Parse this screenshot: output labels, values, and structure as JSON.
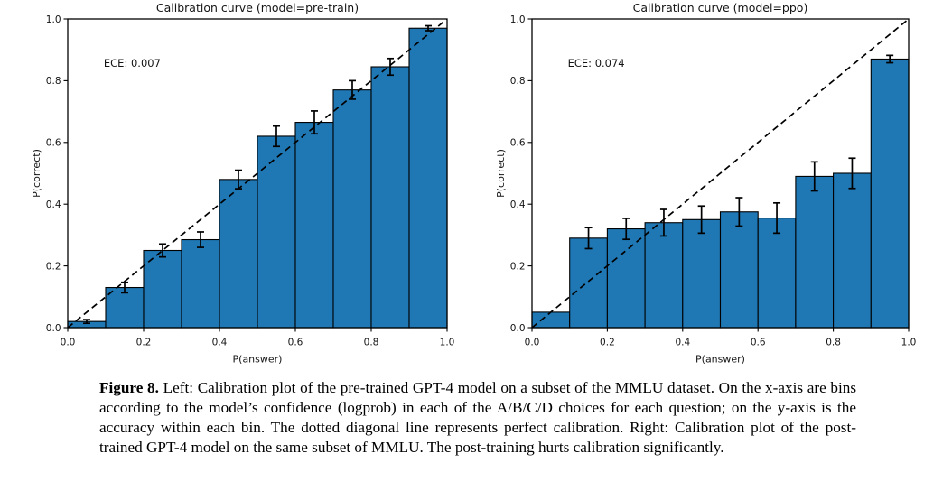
{
  "figure": {
    "caption": {
      "label": "Figure 8.",
      "text": "Left: Calibration plot of the pre-trained GPT-4 model on a subset of the MMLU dataset. On the x-axis are bins according to the model’s confidence (logprob) in each of the A/B/C/D choices for each question; on the y-axis is the accuracy within each bin. The dotted diagonal line represents perfect calibration. Right: Calibration plot of the post-trained GPT-4 model on the same subset of MMLU. The post-training hurts calibration significantly."
    }
  },
  "chart_data": [
    {
      "type": "bar",
      "title": "Calibration curve (model=pre-train)",
      "annotation": "ECE: 0.007",
      "xlabel": "P(answer)",
      "ylabel": "P(correct)",
      "xlim": [
        0,
        1
      ],
      "ylim": [
        0,
        1
      ],
      "grid": false,
      "x_ticks": [
        "0.0",
        "0.2",
        "0.4",
        "0.6",
        "0.8",
        "1.0"
      ],
      "y_ticks": [
        "0.0",
        "0.2",
        "0.4",
        "0.6",
        "0.8",
        "1.0"
      ],
      "bin_edges": [
        0.0,
        0.1,
        0.2,
        0.3,
        0.4,
        0.5,
        0.6,
        0.7,
        0.8,
        0.9,
        1.0
      ],
      "values": [
        0.02,
        0.13,
        0.25,
        0.285,
        0.48,
        0.62,
        0.665,
        0.77,
        0.845,
        0.97
      ],
      "errors": [
        0.006,
        0.017,
        0.021,
        0.025,
        0.03,
        0.033,
        0.037,
        0.03,
        0.027,
        0.008
      ],
      "diagonal": {
        "style": "dashed",
        "from": [
          0,
          0
        ],
        "to": [
          1,
          1
        ],
        "meaning": "perfect calibration"
      },
      "colors": {
        "bar": "#1f77b4",
        "edge": "#000000",
        "diagonal": "#000000"
      }
    },
    {
      "type": "bar",
      "title": "Calibration curve (model=ppo)",
      "annotation": "ECE: 0.074",
      "xlabel": "P(answer)",
      "ylabel": "P(correct)",
      "xlim": [
        0,
        1
      ],
      "ylim": [
        0,
        1
      ],
      "grid": false,
      "x_ticks": [
        "0.0",
        "0.2",
        "0.4",
        "0.6",
        "0.8",
        "1.0"
      ],
      "y_ticks": [
        "0.0",
        "0.2",
        "0.4",
        "0.6",
        "0.8",
        "1.0"
      ],
      "bin_edges": [
        0.0,
        0.1,
        0.2,
        0.3,
        0.4,
        0.5,
        0.6,
        0.7,
        0.8,
        0.9,
        1.0
      ],
      "values": [
        0.05,
        0.29,
        0.32,
        0.34,
        0.35,
        0.375,
        0.355,
        0.49,
        0.5,
        0.87
      ],
      "errors": [
        0,
        0.034,
        0.034,
        0.043,
        0.044,
        0.046,
        0.049,
        0.047,
        0.049,
        0.012
      ],
      "diagonal": {
        "style": "dashed",
        "from": [
          0,
          0
        ],
        "to": [
          1,
          1
        ],
        "meaning": "perfect calibration"
      },
      "colors": {
        "bar": "#1f77b4",
        "edge": "#000000",
        "diagonal": "#000000"
      }
    }
  ]
}
